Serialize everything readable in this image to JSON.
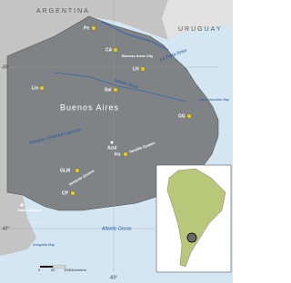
{
  "countries": [
    "ARGENTINA",
    "URUGUAY"
  ],
  "places": [
    "Pe",
    "CA",
    "Buenos Aires City",
    "LH",
    "Sal",
    "Lin",
    "GG",
    "Azul",
    "GLM",
    "CP",
    "Iru",
    "Mar del Plata",
    "Bahía Blanca",
    "Buenos Aires"
  ],
  "water": [
    "La Plata River",
    "Salado River",
    "Samborombón Bay",
    "Western Chained Lagoons",
    "Tandilia System",
    "Ventania System",
    "Atlantic Ocean",
    "Anegada Bay"
  ],
  "coords": [
    "-35°",
    "-40°",
    "-60°"
  ],
  "scale": {
    "ticks": [
      "0",
      "50",
      "100"
    ],
    "unit": "Kilometers"
  }
}
